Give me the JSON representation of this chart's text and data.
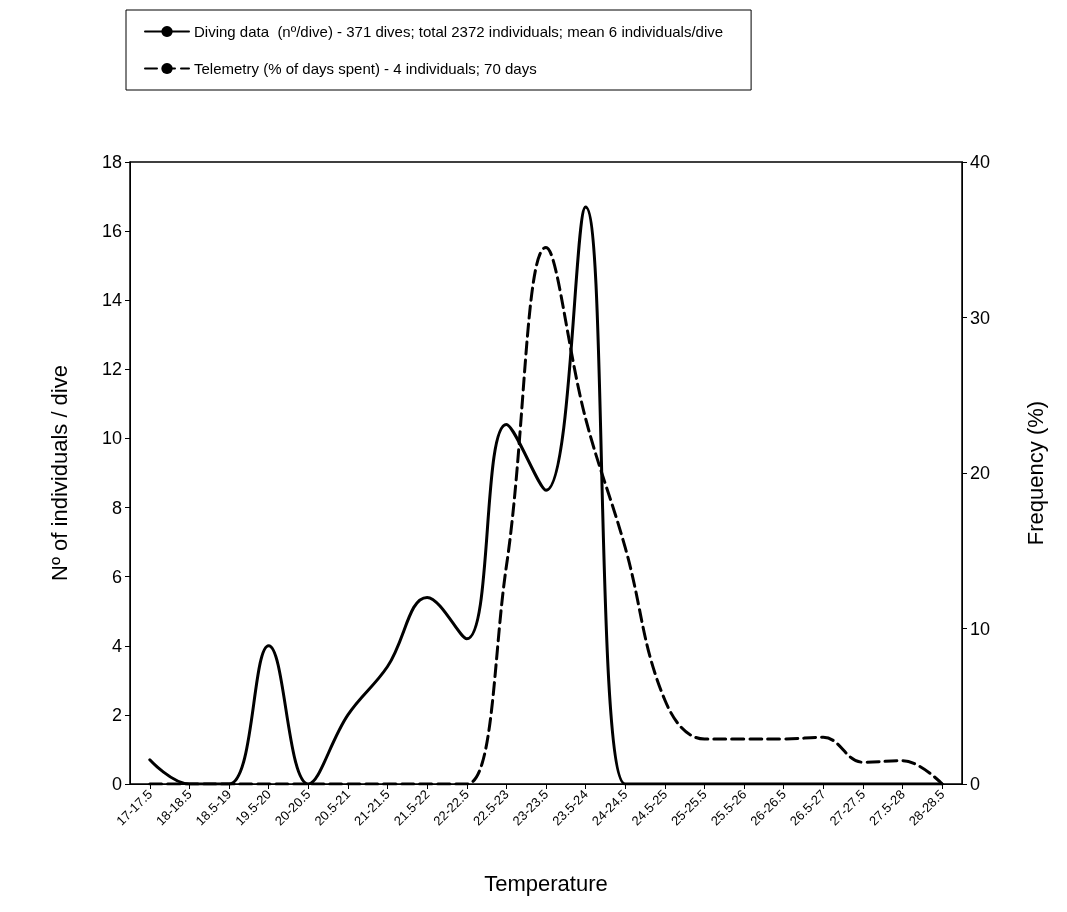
{
  "chart_data": {
    "type": "line",
    "xlabel": "Temperature",
    "ylabel": "Nº of individuals / dive",
    "y2label": "Frequency (%)",
    "categories": [
      "17-17.5",
      "18-18.5",
      "18.5-19",
      "19.5-20",
      "20-20.5",
      "20.5-21",
      "21-21.5",
      "21.5-22",
      "22-22.5",
      "22.5-23",
      "23-23.5",
      "23.5-24",
      "24-24.5",
      "24.5-25",
      "25-25.5",
      "25.5-26",
      "26-26.5",
      "26.5-27",
      "27-27.5",
      "27.5-28",
      "28-28.5"
    ],
    "series": [
      {
        "name": "Diving data  (nº/dive) - 371 dives; total 2372 individuals; mean 6 individuals/dive",
        "color": "#000000",
        "line_style": "solid",
        "values": [
          0.7,
          0,
          0,
          4,
          0,
          2,
          3.4,
          5.4,
          4.2,
          10.4,
          8.5,
          16.7,
          0,
          0,
          0,
          0,
          0,
          0,
          0,
          0,
          0
        ]
      },
      {
        "name": "Telemetry (% of days spent) - 4 individuals; 70 days",
        "color": "#000000",
        "line_style": "dashed",
        "axis": "y2",
        "values": [
          0,
          0,
          0,
          0,
          0,
          0,
          0,
          0,
          0,
          14,
          34.5,
          23.5,
          15.2,
          5.4,
          2.9,
          2.9,
          2.9,
          3,
          1.4,
          1.5,
          0
        ]
      }
    ],
    "ylim": [
      0,
      18
    ],
    "yticks": [
      0,
      2,
      4,
      6,
      8,
      10,
      12,
      14,
      16,
      18
    ],
    "y2lim": [
      0,
      40
    ],
    "y2ticks": [
      0,
      10,
      20,
      30,
      40
    ],
    "grid": false,
    "legend": "top",
    "marker": "none"
  }
}
